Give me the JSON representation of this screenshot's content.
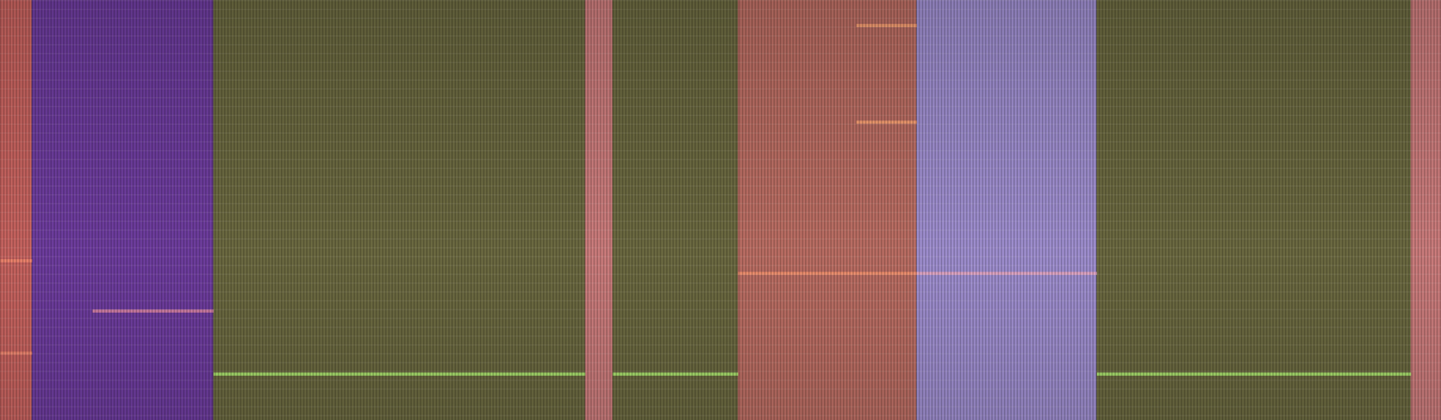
{
  "chart_data": {
    "type": "spectrogram",
    "tick_labels": false,
    "xlim": [
      0,
      100
    ],
    "ylim": [
      0,
      100
    ],
    "segments": [
      {
        "start": 0,
        "end": 2.2,
        "color": "#c4625e"
      },
      {
        "start": 2.2,
        "end": 14.8,
        "color": "#6c3c9c"
      },
      {
        "start": 14.8,
        "end": 40.6,
        "color": "#6a6840"
      },
      {
        "start": 40.6,
        "end": 42.5,
        "color": "#c87a7a"
      },
      {
        "start": 42.5,
        "end": 51.2,
        "color": "#6a6840"
      },
      {
        "start": 51.2,
        "end": 63.6,
        "color": "#b86c62"
      },
      {
        "start": 63.6,
        "end": 76.1,
        "color": "#9c8ccc"
      },
      {
        "start": 76.1,
        "end": 97.9,
        "color": "#6a6840"
      },
      {
        "start": 97.9,
        "end": 100,
        "color": "#c87a7a"
      }
    ],
    "lines": [
      {
        "x0": 14.8,
        "x1": 40.6,
        "y": 11,
        "color": "#a4d86a"
      },
      {
        "x0": 42.5,
        "x1": 51.2,
        "y": 11,
        "color": "#a4d86a"
      },
      {
        "x0": 76.1,
        "x1": 97.9,
        "y": 11,
        "color": "#a4d86a"
      },
      {
        "x0": 6.4,
        "x1": 14.8,
        "y": 26,
        "color": "#c878a0"
      },
      {
        "x0": 51.2,
        "x1": 63.6,
        "y": 35,
        "color": "#e88a6a"
      },
      {
        "x0": 63.6,
        "x1": 76.1,
        "y": 35,
        "color": "#d8a0c0"
      },
      {
        "x0": 59.4,
        "x1": 63.6,
        "y": 71,
        "color": "#f09a70"
      },
      {
        "x0": 59.4,
        "x1": 63.6,
        "y": 94,
        "color": "#f09a70"
      },
      {
        "x0": 0,
        "x1": 2.2,
        "y": 16,
        "color": "#e8806a"
      },
      {
        "x0": 0,
        "x1": 2.2,
        "y": 38,
        "color": "#e8806a"
      }
    ]
  }
}
